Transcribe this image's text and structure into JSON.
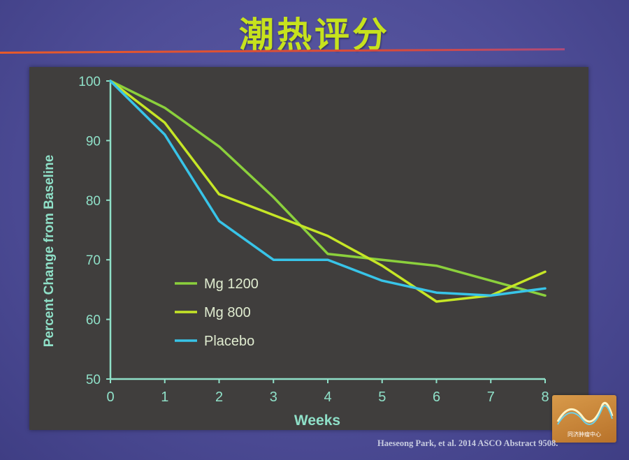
{
  "slide": {
    "title": "潮热评分",
    "citation": "Haeseong Park, et al. 2014 ASCO Abstract 9508.",
    "logo_text": "同济肿瘤中心"
  },
  "chart_data": {
    "type": "line",
    "ylabel": "Percent Change from Baseline",
    "xlabel": "Weeks",
    "x": [
      0,
      1,
      2,
      3,
      4,
      5,
      6,
      7,
      8
    ],
    "xlim": [
      0,
      8
    ],
    "ylim": [
      50,
      100
    ],
    "yticks": [
      50,
      60,
      70,
      80,
      90,
      100
    ],
    "grid": false,
    "legend": "lower-left",
    "series": [
      {
        "name": "Mg 1200",
        "color": "#8bd03c",
        "values": [
          100,
          95.5,
          89,
          80.5,
          71,
          70,
          69,
          66.5,
          64
        ]
      },
      {
        "name": "Mg 800",
        "color": "#c6e626",
        "values": [
          100,
          93,
          81,
          77.5,
          74,
          69,
          63,
          64,
          68
        ]
      },
      {
        "name": "Placebo",
        "color": "#38c4e8",
        "values": [
          100,
          91,
          76.5,
          70,
          70,
          66.5,
          64.5,
          64,
          65.2
        ]
      }
    ]
  }
}
